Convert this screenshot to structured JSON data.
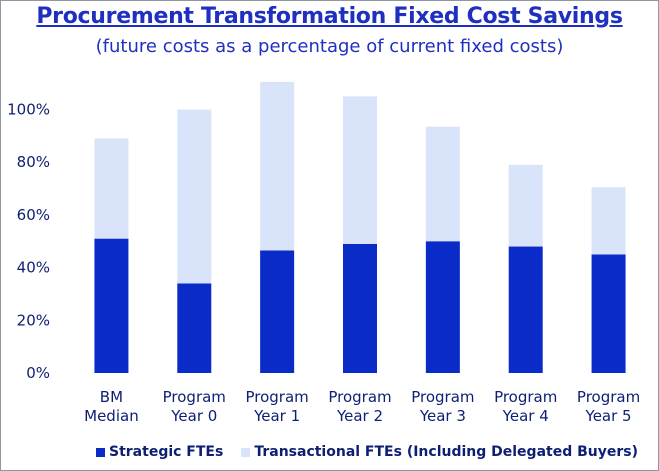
{
  "chart_data": {
    "type": "bar",
    "stacked": true,
    "title": "Procurement Transformation Fixed Cost Savings",
    "subtitle": "(future costs as a percentage of current fixed costs)",
    "categories": [
      [
        "BM",
        "Median"
      ],
      [
        "Program",
        "Year 0"
      ],
      [
        "Program",
        "Year 1"
      ],
      [
        "Program",
        "Year 2"
      ],
      [
        "Program",
        "Year 3"
      ],
      [
        "Program",
        "Year 4"
      ],
      [
        "Program",
        "Year 5"
      ]
    ],
    "series": [
      {
        "name": "Strategic FTEs",
        "color": "#0a2bc8",
        "values": [
          51,
          34,
          46.5,
          49,
          50,
          48,
          45
        ]
      },
      {
        "name": "Transactional FTEs (Including Delegated Buyers)",
        "color": "#d9e4fb",
        "values": [
          38,
          66,
          64,
          56,
          43.5,
          31,
          25.5
        ]
      }
    ],
    "ylim": [
      0,
      115
    ],
    "yticks": [
      0,
      20,
      40,
      60,
      80,
      100
    ],
    "ytick_labels": [
      "0%",
      "20%",
      "40%",
      "60%",
      "80%",
      "100%"
    ],
    "grid": false,
    "legend_position": "bottom"
  }
}
